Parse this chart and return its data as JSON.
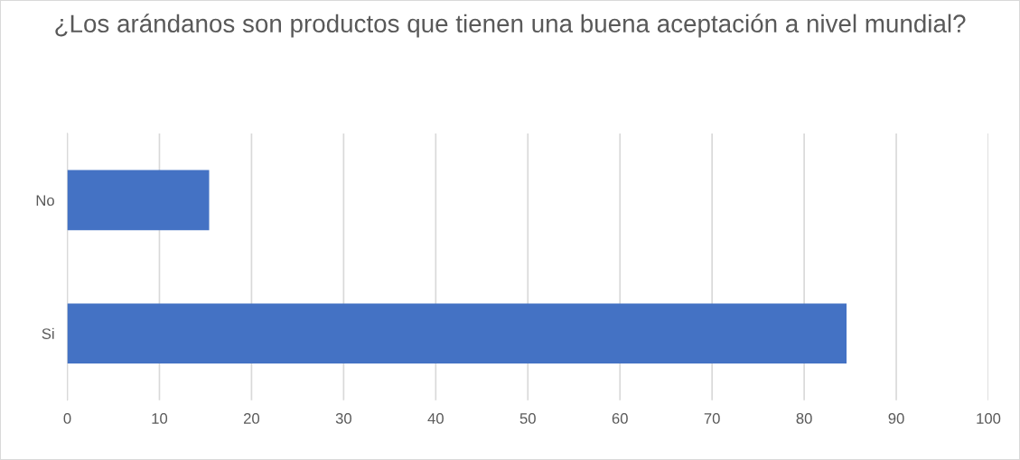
{
  "chart_data": {
    "type": "bar",
    "orientation": "horizontal",
    "title": "¿Los arándanos son productos que tienen una buena aceptación a nivel mundial?",
    "categories": [
      "No",
      "Si"
    ],
    "values": [
      15.4,
      84.6
    ],
    "color": "#4472c4",
    "xlim": [
      0,
      100
    ],
    "xticks": [
      0,
      10,
      20,
      30,
      40,
      50,
      60,
      70,
      80,
      90,
      100
    ],
    "grid": "x",
    "legend": false
  }
}
